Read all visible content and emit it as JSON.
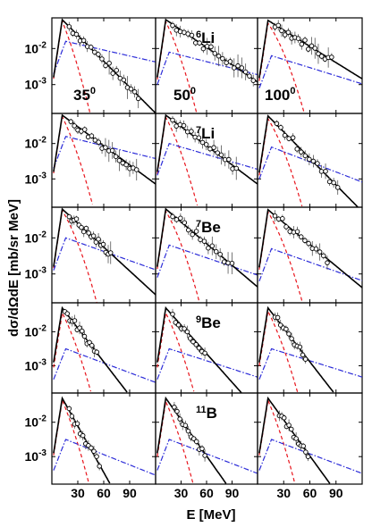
{
  "chart_data": {
    "type": "line",
    "xlabel": "E [MeV]",
    "ylabel": "dσ/dΩdE [mb/sr MeV]",
    "x_ticks": [
      30,
      60,
      90
    ],
    "x_tick_labels": [
      "30",
      "60",
      "90"
    ],
    "ylim_log10": [
      -3.8,
      -1.15
    ],
    "y_ticks": [
      -3,
      -2
    ],
    "y_tick_base": "10",
    "y_tick_exponents": [
      "-3",
      "-2"
    ],
    "angle_labels": [
      {
        "value": "35",
        "unit": "0"
      },
      {
        "value": "50",
        "unit": "0"
      },
      {
        "value": "100",
        "unit": "0"
      }
    ],
    "ejectile_labels": [
      {
        "row": 0,
        "col": 1,
        "mass": "6",
        "symbol": "Li"
      },
      {
        "row": 1,
        "col": 1,
        "mass": "7",
        "symbol": "Li"
      },
      {
        "row": 2,
        "col": 1,
        "mass": "7",
        "symbol": "Be"
      },
      {
        "row": 3,
        "col": 1,
        "mass": "9",
        "symbol": "Be"
      },
      {
        "row": 4,
        "col": 1,
        "mass": "11",
        "symbol": "B"
      }
    ],
    "series_styles": [
      {
        "key": "total",
        "color": "#000000",
        "dash": ""
      },
      {
        "key": "red",
        "color": "#e8141c",
        "dash": "4,3"
      },
      {
        "key": "blue",
        "color": "#2b2bd8",
        "dash": "6,2,1.5,2"
      }
    ],
    "panels": [
      {
        "row": 0,
        "col": 0,
        "total": {
          "peak": -1.2,
          "s": 0.024
        },
        "red": {
          "peak": -1.24,
          "s": 0.06
        },
        "blue": {
          "amp": -1.8,
          "s": 0.0055
        },
        "points": {
          "x0": 20,
          "x1": 100,
          "n": 20
        }
      },
      {
        "row": 0,
        "col": 1,
        "total": {
          "peak": -1.2,
          "s": 0.016
        },
        "red": {
          "peak": -1.26,
          "s": 0.048
        },
        "blue": {
          "amp": -2.1,
          "s": 0.006
        },
        "points": {
          "x0": 20,
          "x1": 115,
          "n": 22
        }
      },
      {
        "row": 0,
        "col": 2,
        "total": {
          "peak": -1.22,
          "s": 0.015
        },
        "red": {
          "peak": -1.3,
          "s": 0.035
        },
        "blue": {
          "amp": -2.2,
          "s": 0.0075
        },
        "points": {
          "x0": 20,
          "x1": 85,
          "n": 18
        }
      },
      {
        "row": 1,
        "col": 0,
        "total": {
          "peak": -1.2,
          "s": 0.018
        },
        "red": {
          "peak": -1.24,
          "s": 0.05
        },
        "blue": {
          "amp": -1.8,
          "s": 0.006
        },
        "points": {
          "x0": 22,
          "x1": 98,
          "n": 20
        }
      },
      {
        "row": 1,
        "col": 1,
        "total": {
          "peak": -1.2,
          "s": 0.018
        },
        "red": {
          "peak": -1.26,
          "s": 0.045
        },
        "blue": {
          "amp": -2.0,
          "s": 0.007
        },
        "points": {
          "x0": 20,
          "x1": 95,
          "n": 18
        }
      },
      {
        "row": 1,
        "col": 2,
        "total": {
          "peak": -1.22,
          "s": 0.025
        },
        "red": {
          "peak": -1.3,
          "s": 0.04
        },
        "blue": {
          "amp": -2.1,
          "s": 0.0095
        },
        "points": {
          "x0": 22,
          "x1": 92,
          "n": 16
        }
      },
      {
        "row": 2,
        "col": 0,
        "total": {
          "peak": -1.2,
          "s": 0.022
        },
        "red": {
          "peak": -1.24,
          "s": 0.04
        },
        "blue": {
          "amp": -2.0,
          "s": 0.0085
        },
        "points": {
          "x0": 20,
          "x1": 68,
          "n": 18
        }
      },
      {
        "row": 2,
        "col": 1,
        "total": {
          "peak": -1.2,
          "s": 0.02
        },
        "red": {
          "peak": -1.26,
          "s": 0.04
        },
        "blue": {
          "amp": -2.2,
          "s": 0.008
        },
        "points": {
          "x0": 20,
          "x1": 90,
          "n": 16
        }
      },
      {
        "row": 2,
        "col": 2,
        "total": {
          "peak": -1.22,
          "s": 0.02
        },
        "red": {
          "peak": -1.28,
          "s": 0.04
        },
        "blue": {
          "amp": -2.3,
          "s": 0.0085
        },
        "points": {
          "x0": 20,
          "x1": 80,
          "n": 15
        }
      },
      {
        "row": 3,
        "col": 0,
        "total": {
          "peak": -1.3,
          "s": 0.033
        },
        "red": {
          "peak": -1.45,
          "s": 0.05
        },
        "blue": {
          "amp": -2.5,
          "s": 0.0095
        },
        "points": {
          "x0": 15,
          "x1": 52,
          "n": 14
        }
      },
      {
        "row": 3,
        "col": 1,
        "total": {
          "peak": -1.3,
          "s": 0.028
        },
        "red": {
          "peak": -1.45,
          "s": 0.05
        },
        "blue": {
          "amp": -2.5,
          "s": 0.008
        },
        "points": {
          "x0": 20,
          "x1": 58,
          "n": 12
        }
      },
      {
        "row": 3,
        "col": 2,
        "total": {
          "peak": -1.3,
          "s": 0.033
        },
        "red": {
          "peak": -1.4,
          "s": 0.05
        },
        "blue": {
          "amp": -2.5,
          "s": 0.008
        },
        "points": {
          "x0": 20,
          "x1": 55,
          "n": 12
        }
      },
      {
        "row": 4,
        "col": 0,
        "total": {
          "peak": -1.3,
          "s": 0.045
        },
        "red": {
          "peak": -1.36,
          "s": 0.06
        },
        "blue": {
          "amp": -2.5,
          "s": 0.01
        },
        "points": {
          "x0": 20,
          "x1": 55,
          "n": 12
        }
      },
      {
        "row": 4,
        "col": 1,
        "total": {
          "peak": -1.3,
          "s": 0.035
        },
        "red": {
          "peak": -1.4,
          "s": 0.055
        },
        "blue": {
          "amp": -2.5,
          "s": 0.0095
        },
        "points": {
          "x0": 22,
          "x1": 58,
          "n": 12
        }
      },
      {
        "row": 4,
        "col": 2,
        "total": {
          "peak": -1.3,
          "s": 0.035
        },
        "red": {
          "peak": -1.36,
          "s": 0.06
        },
        "blue": {
          "amp": -2.5,
          "s": 0.0095
        },
        "points": {
          "x0": 25,
          "x1": 58,
          "n": 13
        }
      }
    ]
  }
}
